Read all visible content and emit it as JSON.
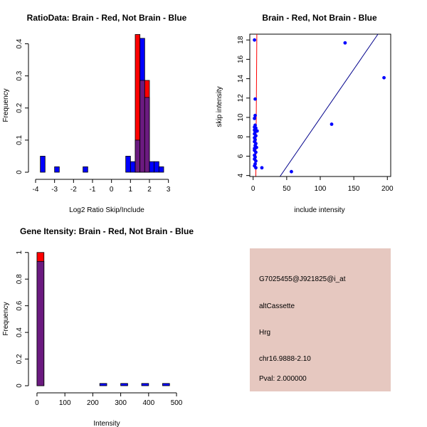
{
  "colors": {
    "brain": "#ff0000",
    "not_brain": "#0000ff",
    "overlap": "#6b1a80",
    "info_bg": "#e6c8c0",
    "pval": "#c00000"
  },
  "chart_data": [
    {
      "id": "ratio",
      "type": "bar",
      "title": "RatioData: Brain - Red, Not Brain - Blue",
      "xlabel": "Log2 Ratio Skip/Include",
      "ylabel": "Frequency",
      "xlim": [
        -4,
        3.5
      ],
      "ylim": [
        0,
        0.43
      ],
      "xticks": [
        -4,
        -3,
        -2,
        -1,
        0,
        1,
        2,
        3
      ],
      "yticks": [
        0.0,
        0.1,
        0.2,
        0.3,
        0.4
      ],
      "bin_width": 0.25,
      "bin_starts": [
        -3.75,
        -3.0,
        -1.5,
        0.75,
        1.0,
        1.25,
        1.5,
        1.75,
        2.0,
        2.25,
        2.5,
        2.75
      ],
      "series": [
        {
          "name": "Brain",
          "color": "red",
          "values": [
            0,
            0,
            0,
            0,
            0,
            0.429,
            0.286,
            0.286,
            0,
            0,
            0,
            0
          ]
        },
        {
          "name": "Not Brain",
          "color": "blue",
          "values": [
            0.05,
            0.017,
            0.017,
            0.05,
            0.033,
            0.1,
            0.417,
            0.233,
            0.033,
            0.033,
            0.017,
            0
          ]
        }
      ]
    },
    {
      "id": "scatter",
      "type": "scatter",
      "title": "Brain - Red, Not Brain - Blue",
      "xlabel": "include intensity",
      "ylabel": "skip intensity",
      "xlim": [
        -5,
        205
      ],
      "ylim": [
        3.9,
        18.6
      ],
      "xticks": [
        0,
        50,
        100,
        150,
        200
      ],
      "yticks": [
        4,
        6,
        8,
        10,
        12,
        14,
        16,
        18
      ],
      "points_not_brain": [
        [
          2,
          18
        ],
        [
          3,
          11.9
        ],
        [
          3,
          10.2
        ],
        [
          2,
          9.9
        ],
        [
          3,
          9.2
        ],
        [
          2,
          9.0
        ],
        [
          4,
          8.9
        ],
        [
          2,
          8.7
        ],
        [
          3,
          8.5
        ],
        [
          6,
          8.6
        ],
        [
          2,
          8.3
        ],
        [
          4,
          8.1
        ],
        [
          2,
          7.9
        ],
        [
          3,
          7.7
        ],
        [
          2,
          7.5
        ],
        [
          4,
          7.3
        ],
        [
          3,
          7.1
        ],
        [
          2,
          6.8
        ],
        [
          5,
          6.9
        ],
        [
          2,
          6.6
        ],
        [
          4,
          6.4
        ],
        [
          2,
          6.1
        ],
        [
          3,
          5.9
        ],
        [
          2,
          5.7
        ],
        [
          4,
          5.5
        ],
        [
          3,
          5.2
        ],
        [
          2,
          5.0
        ],
        [
          4,
          4.8
        ],
        [
          13,
          4.8
        ],
        [
          57,
          4.4
        ],
        [
          117,
          9.3
        ],
        [
          137,
          17.7
        ],
        [
          195,
          14.1
        ]
      ],
      "fit_line_blue": [
        [
          40,
          3.9
        ],
        [
          186,
          18.6
        ]
      ],
      "fit_line_red": [
        [
          4,
          3.9
        ],
        [
          5.5,
          18.6
        ]
      ]
    },
    {
      "id": "intensity",
      "type": "bar",
      "title": "Gene Itensity: Brain - Red, Not Brain - Blue",
      "xlabel": "Intensity",
      "ylabel": "Frequency",
      "xlim": [
        -5,
        505
      ],
      "ylim": [
        0,
        1.02
      ],
      "xticks": [
        0,
        100,
        200,
        300,
        400,
        500
      ],
      "yticks": [
        0.0,
        0.2,
        0.4,
        0.6,
        0.8,
        1.0
      ],
      "bin_width": 25,
      "bin_starts": [
        0,
        225,
        300,
        375,
        450
      ],
      "series": [
        {
          "name": "Brain",
          "color": "red",
          "values": [
            1.0,
            0,
            0,
            0,
            0
          ]
        },
        {
          "name": "Not Brain",
          "color": "blue",
          "values": [
            0.933,
            0.017,
            0.017,
            0.017,
            0.017
          ]
        }
      ]
    }
  ],
  "info_panel": {
    "probe": "G7025455@J921825@i_at",
    "event": "altCassette",
    "gene": "Hrg",
    "location": "chr16.9888-2.10",
    "pval": "Pval: 2.000000"
  }
}
